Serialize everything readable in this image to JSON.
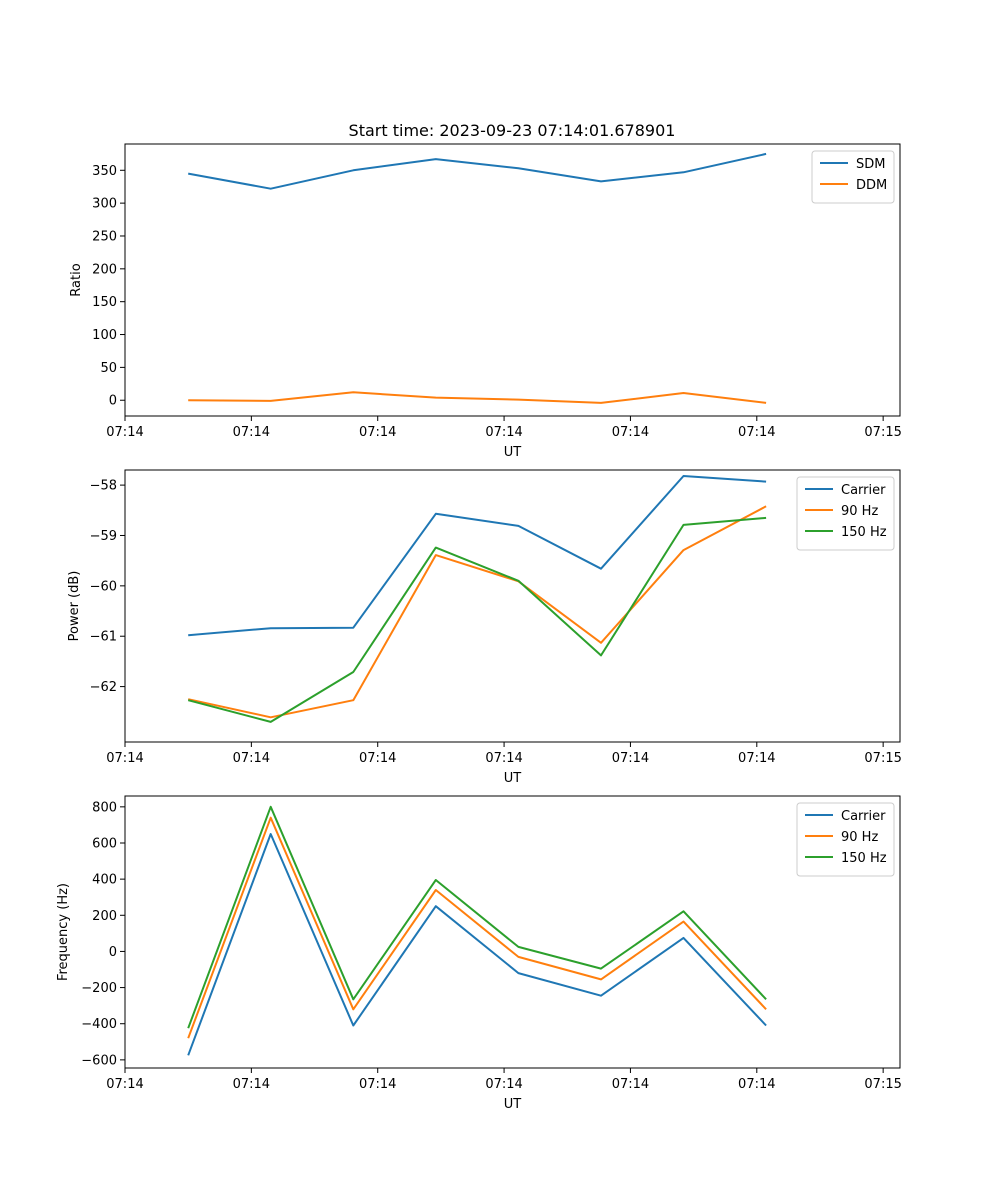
{
  "figure": {
    "title": "Start time: 2023-09-23 07:14:01.678901"
  },
  "chart_data": [
    {
      "type": "line",
      "name": "ratio-chart",
      "ylabel": "Ratio",
      "xlabel": "UT",
      "xlim": [
        0,
        9.2
      ],
      "ylim": [
        -24,
        390
      ],
      "x_ticks": [
        0.0,
        1.5,
        3.0,
        4.5,
        6.0,
        7.5,
        9.0
      ],
      "x_tick_labels": [
        "07:14",
        "07:14",
        "07:14",
        "07:14",
        "07:14",
        "07:14",
        "07:15"
      ],
      "y_ticks": [
        0,
        50,
        100,
        150,
        200,
        250,
        300,
        350
      ],
      "y_tick_labels": [
        "0",
        "50",
        "100",
        "150",
        "200",
        "250",
        "300",
        "350"
      ],
      "legend_position": "top-right",
      "x": [
        0.75,
        1.73,
        2.71,
        3.69,
        4.67,
        5.65,
        6.63,
        7.61
      ],
      "series": [
        {
          "name": "SDM",
          "color": "#1f77b4",
          "values": [
            345,
            322,
            350,
            367,
            353,
            333,
            347,
            375
          ]
        },
        {
          "name": "DDM",
          "color": "#ff7f0e",
          "values": [
            0,
            -1,
            12,
            4,
            1,
            -4,
            11,
            -4
          ]
        }
      ]
    },
    {
      "type": "line",
      "name": "power-chart",
      "ylabel": "Power (dB)",
      "xlabel": "UT",
      "xlim": [
        0,
        9.2
      ],
      "ylim": [
        -63.1,
        -57.7
      ],
      "x_ticks": [
        0.0,
        1.5,
        3.0,
        4.5,
        6.0,
        7.5,
        9.0
      ],
      "x_tick_labels": [
        "07:14",
        "07:14",
        "07:14",
        "07:14",
        "07:14",
        "07:14",
        "07:15"
      ],
      "y_ticks": [
        -62,
        -61,
        -60,
        -59,
        -58
      ],
      "y_tick_labels": [
        "−62",
        "−61",
        "−60",
        "−59",
        "−58"
      ],
      "legend_position": "top-right",
      "x": [
        0.75,
        1.73,
        2.71,
        3.69,
        4.67,
        5.65,
        6.63,
        7.61
      ],
      "series": [
        {
          "name": "Carrier",
          "color": "#1f77b4",
          "values": [
            -60.98,
            -60.84,
            -60.83,
            -58.57,
            -58.81,
            -59.66,
            -57.82,
            -57.93
          ]
        },
        {
          "name": "90 Hz",
          "color": "#ff7f0e",
          "values": [
            -62.25,
            -62.61,
            -62.27,
            -59.39,
            -59.91,
            -61.13,
            -59.29,
            -58.42
          ]
        },
        {
          "name": "150 Hz",
          "color": "#2ca02c",
          "values": [
            -62.27,
            -62.7,
            -61.71,
            -59.24,
            -59.9,
            -61.38,
            -58.79,
            -58.65
          ]
        }
      ]
    },
    {
      "type": "line",
      "name": "frequency-chart",
      "ylabel": "Frequency (Hz)",
      "xlabel": "UT",
      "xlim": [
        0,
        9.2
      ],
      "ylim": [
        -645,
        860
      ],
      "x_ticks": [
        0.0,
        1.5,
        3.0,
        4.5,
        6.0,
        7.5,
        9.0
      ],
      "x_tick_labels": [
        "07:14",
        "07:14",
        "07:14",
        "07:14",
        "07:14",
        "07:14",
        "07:15"
      ],
      "y_ticks": [
        -600,
        -400,
        -200,
        0,
        200,
        400,
        600,
        800
      ],
      "y_tick_labels": [
        "−600",
        "−400",
        "−200",
        "0",
        "200",
        "400",
        "600",
        "800"
      ],
      "legend_position": "top-right",
      "x": [
        0.75,
        1.73,
        2.71,
        3.69,
        4.67,
        5.65,
        6.63,
        7.61
      ],
      "series": [
        {
          "name": "Carrier",
          "color": "#1f77b4",
          "values": [
            -575,
            650,
            -410,
            250,
            -120,
            -245,
            75,
            -410
          ]
        },
        {
          "name": "90 Hz",
          "color": "#ff7f0e",
          "values": [
            -480,
            740,
            -320,
            340,
            -30,
            -155,
            165,
            -320
          ]
        },
        {
          "name": "150 Hz",
          "color": "#2ca02c",
          "values": [
            -425,
            800,
            -265,
            395,
            25,
            -95,
            222,
            -265
          ]
        }
      ]
    }
  ]
}
